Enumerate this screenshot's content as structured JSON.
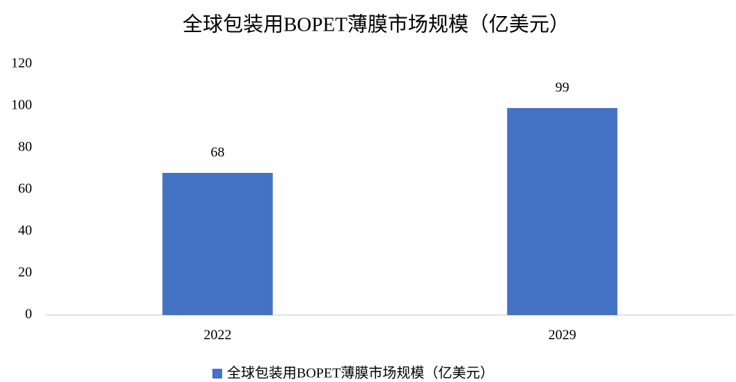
{
  "chart_data": {
    "type": "bar",
    "title": "全球包装用BOPET薄膜市场规模（亿美元）",
    "categories": [
      "2022",
      "2029"
    ],
    "series": [
      {
        "name": "全球包装用BOPET薄膜市场规模（亿美元）",
        "color": "#4472c4",
        "values": [
          68,
          99
        ]
      }
    ],
    "ylim": [
      0,
      120
    ],
    "yticks": [
      0,
      20,
      40,
      60,
      80,
      100,
      120
    ],
    "grid": false,
    "data_labels": true,
    "legend": "bottom"
  }
}
